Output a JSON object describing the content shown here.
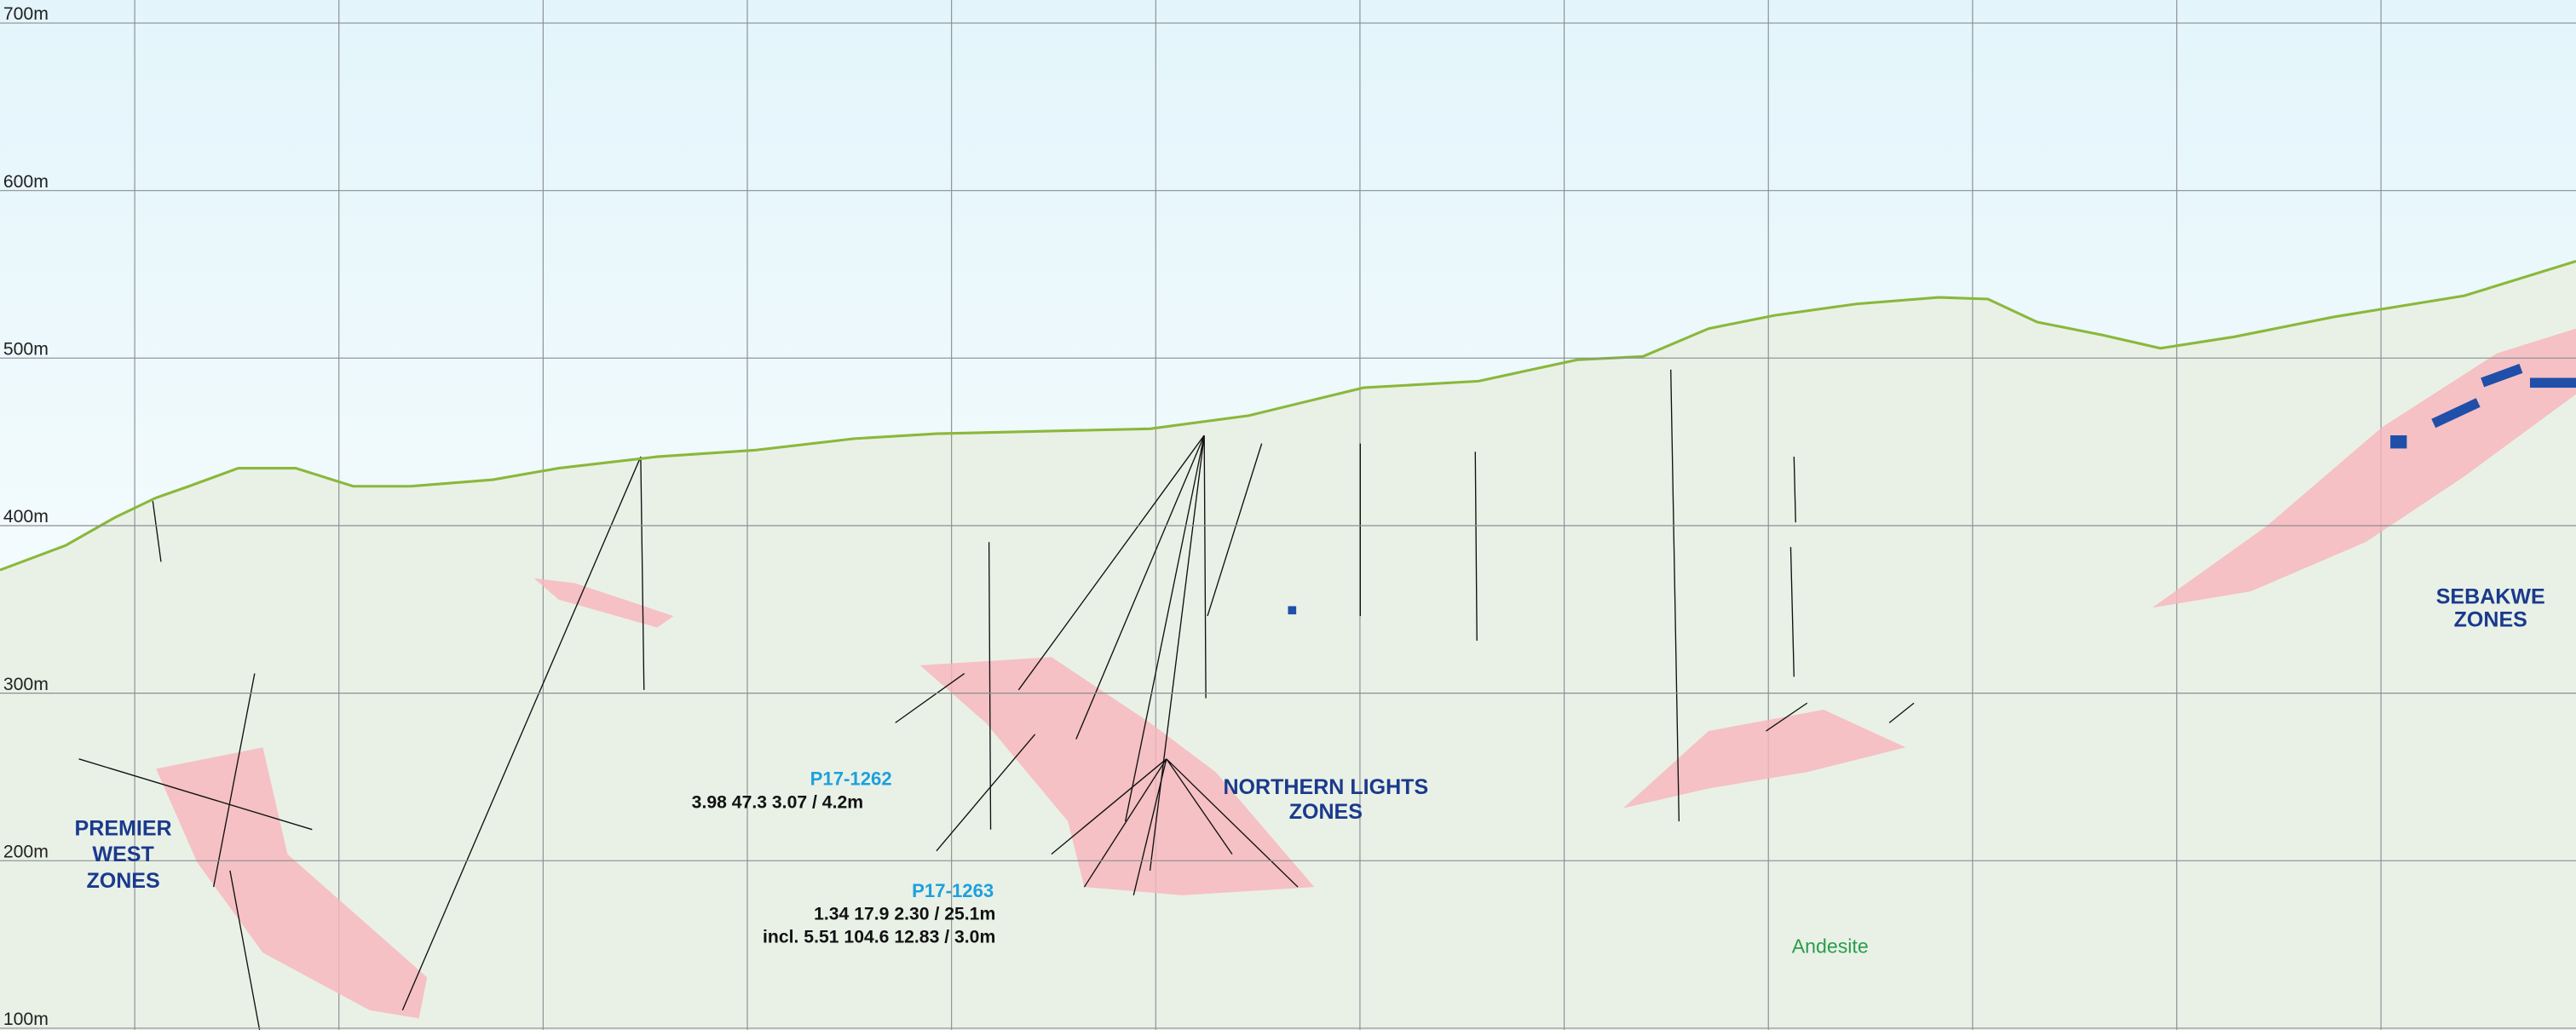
{
  "axis": {
    "ylim": [
      99,
      713.7
    ],
    "yticks": [
      {
        "value": 700,
        "label": "700m"
      },
      {
        "value": 600,
        "label": "600m"
      },
      {
        "value": 500,
        "label": "500m"
      },
      {
        "value": 400,
        "label": "400m"
      },
      {
        "value": 300,
        "label": "300m"
      },
      {
        "value": 200,
        "label": "200m"
      },
      {
        "value": 100,
        "label": "100m"
      }
    ]
  },
  "zones": [
    {
      "lines": [
        "PREMIER",
        "WEST",
        "ZONES"
      ]
    },
    {
      "lines": [
        "NORTHERN LIGHTS",
        "ZONES"
      ]
    },
    {
      "lines": [
        "SEBAKWE",
        "ZONES"
      ]
    }
  ],
  "holes": [
    {
      "name": "P17-1262",
      "assays": [
        "3.98  47.3  3.07 / 4.2m"
      ]
    },
    {
      "name": "P17-1263",
      "assays": [
        "1.34  17.9  2.30 / 25.1m",
        "incl.  5.51  104.6  12.83 / 3.0m"
      ]
    }
  ],
  "lithology": "Andesite"
}
